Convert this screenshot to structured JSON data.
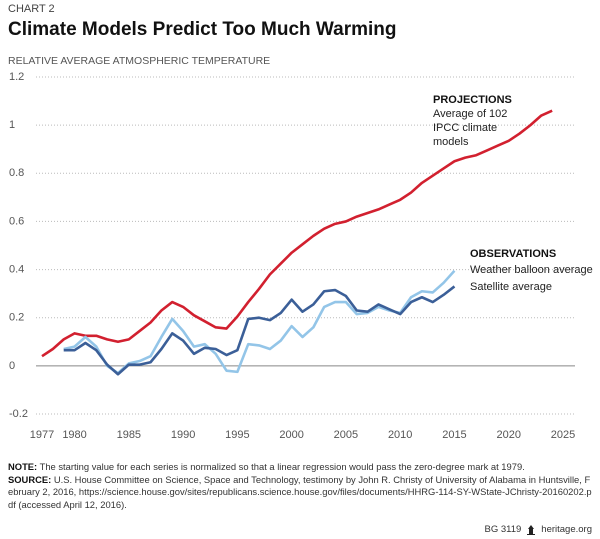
{
  "kicker": "CHART 2",
  "chart_data": {
    "type": "line",
    "title": "Climate Models Predict Too Much Warming",
    "subtitle": "RELATIVE AVERAGE ATMOSPHERIC TEMPERATURE",
    "x": [
      1977,
      1978,
      1979,
      1980,
      1981,
      1982,
      1983,
      1984,
      1985,
      1986,
      1987,
      1988,
      1989,
      1990,
      1991,
      1992,
      1993,
      1994,
      1995,
      1996,
      1997,
      1998,
      1999,
      2000,
      2001,
      2002,
      2003,
      2004,
      2005,
      2006,
      2007,
      2008,
      2009,
      2010,
      2011,
      2012,
      2013,
      2014,
      2015,
      2016,
      2017,
      2018,
      2019,
      2020,
      2021,
      2022,
      2023,
      2024
    ],
    "series": [
      {
        "name": "Average of 102 IPCC climate models",
        "group": "PROJECTIONS",
        "color": "#d2202f",
        "values": [
          0.04,
          0.07,
          0.11,
          0.135,
          0.125,
          0.125,
          0.11,
          0.1,
          0.11,
          0.145,
          0.18,
          0.23,
          0.265,
          0.245,
          0.21,
          0.185,
          0.16,
          0.155,
          0.205,
          0.265,
          0.32,
          0.38,
          0.425,
          0.47,
          0.505,
          0.54,
          0.57,
          0.59,
          0.6,
          0.62,
          0.635,
          0.65,
          0.67,
          0.69,
          0.72,
          0.76,
          0.79,
          0.82,
          0.85,
          0.865,
          0.875,
          0.895,
          0.915,
          0.935,
          0.965,
          1.0,
          1.04,
          1.06
        ]
      },
      {
        "name": "Weather balloon average",
        "group": "OBSERVATIONS",
        "color": "#93c5e8",
        "values": [
          null,
          null,
          0.07,
          0.08,
          0.12,
          0.08,
          0.0,
          -0.03,
          0.01,
          0.02,
          0.04,
          0.12,
          0.195,
          0.145,
          0.08,
          0.09,
          0.05,
          -0.02,
          -0.025,
          0.09,
          0.085,
          0.07,
          0.105,
          0.165,
          0.12,
          0.16,
          0.245,
          0.265,
          0.265,
          0.215,
          0.22,
          0.245,
          0.23,
          0.22,
          0.285,
          0.31,
          0.305,
          0.345,
          0.395,
          null,
          null,
          null,
          null,
          null,
          null,
          null,
          null,
          null
        ]
      },
      {
        "name": "Satellite average",
        "color": "#3b5f98",
        "values": [
          null,
          null,
          0.065,
          0.065,
          0.095,
          0.065,
          0.005,
          -0.035,
          0.005,
          0.005,
          0.015,
          0.07,
          0.135,
          0.105,
          0.05,
          0.075,
          0.07,
          0.045,
          0.065,
          0.195,
          0.2,
          0.19,
          0.22,
          0.275,
          0.225,
          0.255,
          0.31,
          0.315,
          0.29,
          0.23,
          0.225,
          0.255,
          0.235,
          0.215,
          0.265,
          0.285,
          0.265,
          0.295,
          0.33,
          null,
          null,
          null,
          null,
          null,
          null,
          null,
          null,
          null
        ]
      }
    ],
    "xlim": [
      1977,
      2025
    ],
    "xticks": [
      1977,
      1980,
      1985,
      1990,
      1995,
      2000,
      2005,
      2010,
      2015,
      2020,
      2025
    ],
    "ylim": [
      -0.2,
      1.2
    ],
    "yticks": [
      -0.2,
      0,
      0.2,
      0.4,
      0.6,
      0.8,
      1.0,
      1.2
    ],
    "grid": true
  },
  "note": {
    "label": "NOTE:",
    "text": "The starting value for each series is normalized so that a linear regression would pass the zero-degree mark at 1979."
  },
  "source": {
    "label": "SOURCE:",
    "text": "U.S. House Committee on Science, Space and Technology, testimony by John R. Christy of University of Alabama in Huntsville, February 2, 2016, https://science.house.gov/sites/republicans.science.house.gov/files/documents/HHRG-114-SY-WState-JChristy-20160202.pdf (accessed April 12, 2016)."
  },
  "footer": {
    "code": "BG 3119",
    "site": "heritage.org"
  }
}
